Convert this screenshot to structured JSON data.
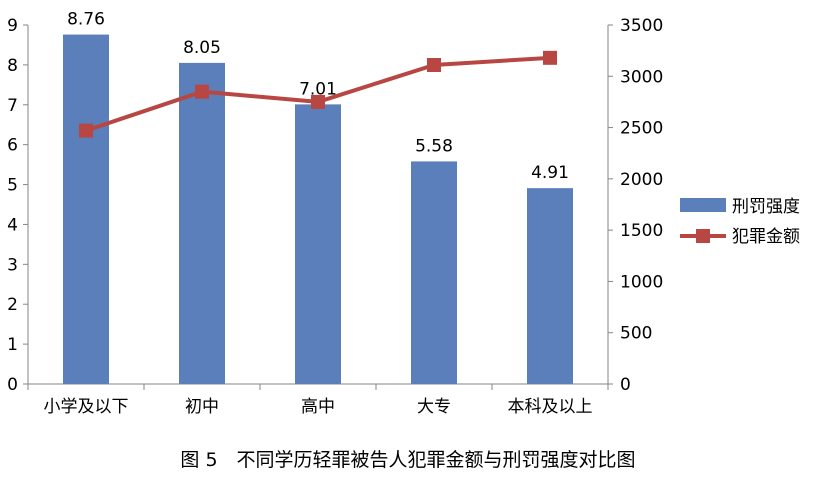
{
  "chart_data": {
    "type": "bar",
    "categories": [
      "小学及以下",
      "初中",
      "高中",
      "大专",
      "本科及以上"
    ],
    "series": [
      {
        "name": "刑罚强度",
        "type": "bar",
        "axis": "left",
        "values": [
          8.76,
          8.05,
          7.01,
          5.58,
          4.91
        ],
        "data_labels": [
          "8.76",
          "8.05",
          "7.01",
          "5.58",
          "4.91"
        ],
        "color": "#5b7fba"
      },
      {
        "name": "犯罪金额",
        "type": "line",
        "axis": "right",
        "values": [
          2470,
          2850,
          2750,
          3110,
          3180
        ],
        "color": "#b84643",
        "marker": "square"
      }
    ],
    "y_left": {
      "ylim": [
        0,
        9
      ],
      "ticks": [
        "0",
        "1",
        "2",
        "3",
        "4",
        "5",
        "6",
        "7",
        "8",
        "9"
      ]
    },
    "y_right": {
      "ylim": [
        0,
        3500
      ],
      "ticks": [
        "0",
        "500",
        "1000",
        "1500",
        "2000",
        "2500",
        "3000",
        "3500"
      ]
    },
    "legend_position": "right",
    "grid": false
  },
  "caption": "图 5　不同学历轻罪被告人犯罪金额与刑罚强度对比图"
}
